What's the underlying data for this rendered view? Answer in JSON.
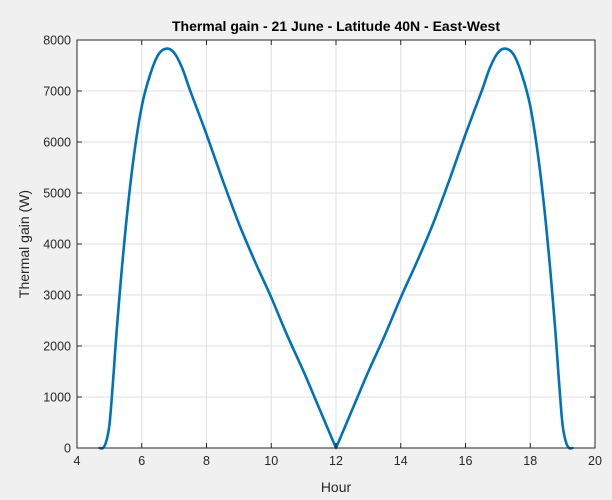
{
  "chart_data": {
    "type": "line",
    "title": "Thermal gain - 21 June - Latitude 40N - East-West",
    "xlabel": "Hour",
    "ylabel": "Thermal gain (W)",
    "xlim": [
      4,
      20
    ],
    "ylim": [
      0,
      8000
    ],
    "x_ticks": [
      4,
      6,
      8,
      10,
      12,
      14,
      16,
      18,
      20
    ],
    "y_ticks": [
      0,
      1000,
      2000,
      3000,
      4000,
      5000,
      6000,
      7000,
      8000
    ],
    "grid": true,
    "line_color": "#0072BD",
    "series": [
      {
        "x": [
          4.7,
          4.8,
          4.9,
          5.0,
          5.1,
          5.25,
          5.5,
          5.75,
          6.0,
          6.25,
          6.5,
          6.75,
          7.0,
          7.25,
          7.5,
          8.0,
          8.5,
          9.0,
          9.5,
          10.0,
          10.5,
          11.0,
          11.5,
          12.0,
          12.5,
          13.0,
          13.5,
          14.0,
          14.5,
          15.0,
          15.5,
          16.0,
          16.5,
          16.75,
          17.0,
          17.25,
          17.5,
          17.75,
          18.0,
          18.25,
          18.5,
          18.75,
          18.9,
          19.0,
          19.1,
          19.2,
          19.3
        ],
        "y": [
          0,
          0,
          120,
          450,
          1200,
          2500,
          4300,
          5700,
          6700,
          7300,
          7700,
          7830,
          7750,
          7450,
          7000,
          6150,
          5250,
          4400,
          3650,
          2950,
          2200,
          1500,
          750,
          0,
          750,
          1500,
          2200,
          2950,
          3650,
          4400,
          5250,
          6150,
          7000,
          7450,
          7750,
          7830,
          7700,
          7300,
          6700,
          5700,
          4300,
          2500,
          1200,
          450,
          120,
          0,
          0
        ]
      }
    ]
  }
}
